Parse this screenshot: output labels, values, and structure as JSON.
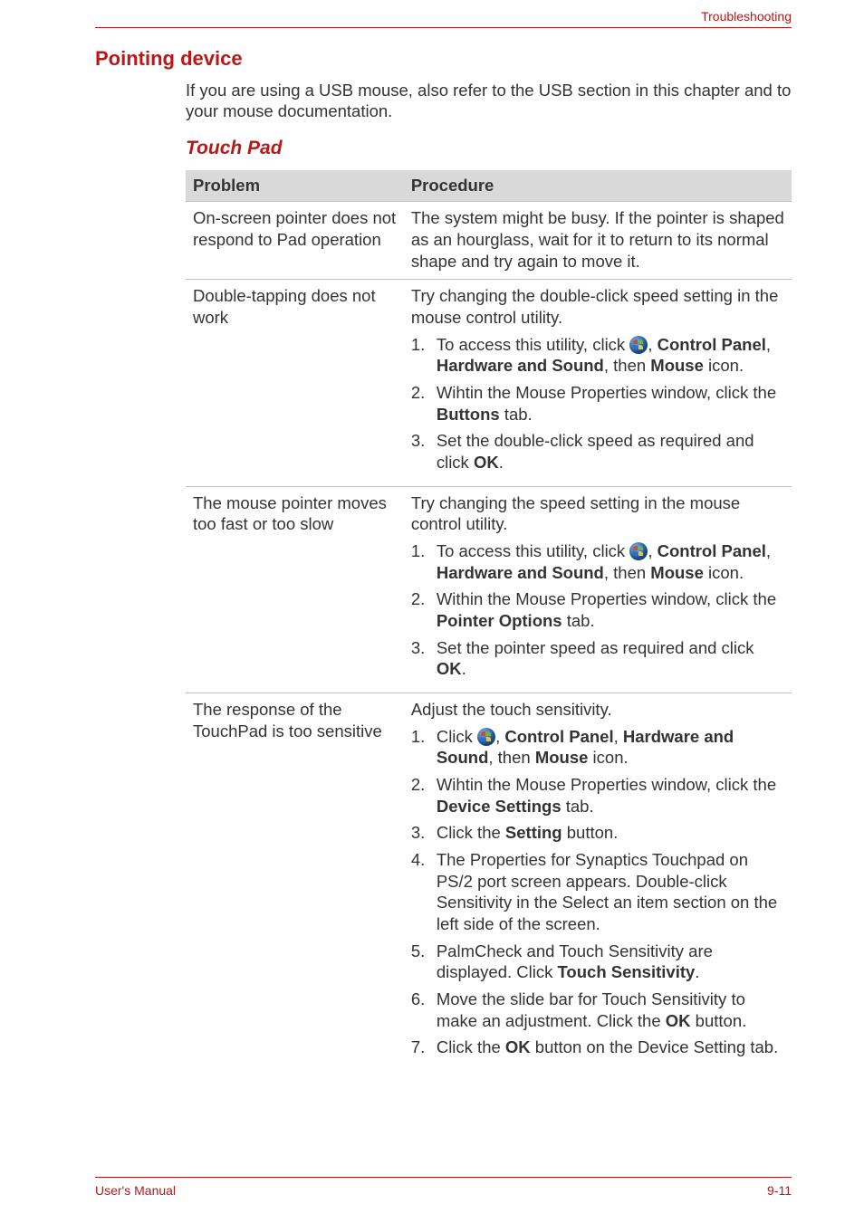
{
  "header": {
    "section": "Troubleshooting"
  },
  "h2": "Pointing device",
  "intro": "If you are using a USB mouse, also refer to the USB section in this chapter and to your mouse documentation.",
  "h3": "Touch Pad",
  "table": {
    "col_problem": "Problem",
    "col_procedure": "Procedure",
    "row1": {
      "problem": "On-screen pointer does not respond to Pad operation",
      "procedure": "The system might be busy. If the pointer is shaped as an hourglass, wait for it to return to its normal shape and try again to move it."
    },
    "row2": {
      "problem": "Double-tapping does not work",
      "lead": "Try changing the double-click speed setting in the mouse control utility.",
      "s1a": "To access this utility, click ",
      "s1b": ", ",
      "s1_bold1": "Control Panel",
      "s1c": ", ",
      "s1_bold2": "Hardware and Sound",
      "s1d": ", then ",
      "s1_bold3": "Mouse",
      "s1e": " icon.",
      "s2a": "Wihtin the Mouse Properties window, click the ",
      "s2_bold": "Buttons",
      "s2b": " tab.",
      "s3a": "Set the double-click speed as required and click ",
      "s3_bold": "OK",
      "s3b": "."
    },
    "row3": {
      "problem": "The mouse pointer moves too fast or too slow",
      "lead": "Try changing the speed setting in the mouse control utility.",
      "s1a": "To access this utility, click ",
      "s1b": ", ",
      "s1_bold1": "Control Panel",
      "s1c": ", ",
      "s1_bold2": "Hardware and Sound",
      "s1d": ", then ",
      "s1_bold3": "Mouse",
      "s1e": " icon.",
      "s2a": "Within the Mouse Properties window, click the ",
      "s2_bold": "Pointer Options",
      "s2b": " tab.",
      "s3a": "Set the pointer speed as required and click ",
      "s3_bold": "OK",
      "s3b": "."
    },
    "row4": {
      "problem": "The response of the TouchPad is too sensitive",
      "lead": "Adjust the touch sensitivity.",
      "s1a": "Click ",
      "s1b": ", ",
      "s1_bold1": "Control Panel",
      "s1c": ", ",
      "s1_bold2": "Hardware and Sound",
      "s1d": ", then ",
      "s1_bold3": "Mouse",
      "s1e": " icon.",
      "s2a": "Wihtin the Mouse Properties window, click the ",
      "s2_bold": "Device Settings",
      "s2b": " tab.",
      "s3a": "Click the ",
      "s3_bold": "Setting",
      "s3b": " button.",
      "s4": "The Properties for Synaptics Touchpad on PS/2 port screen appears. Double-click Sensitivity in the Select an item section on the left side of the screen.",
      "s5a": "PalmCheck and Touch Sensitivity are displayed. Click ",
      "s5_bold": "Touch Sensitivity",
      "s5b": ".",
      "s6a": "Move the slide bar for Touch Sensitivity to make an adjustment. Click the ",
      "s6_bold": "OK",
      "s6b": " button.",
      "s7a": "Click the ",
      "s7_bold": "OK",
      "s7b": " button on the Device Setting tab."
    }
  },
  "footer": {
    "left": "User's Manual",
    "right": "9-11"
  },
  "colors": {
    "accent": "#b81818",
    "header_bg": "#d9d9d9",
    "rule": "#bfbfbf",
    "text": "#333333"
  }
}
